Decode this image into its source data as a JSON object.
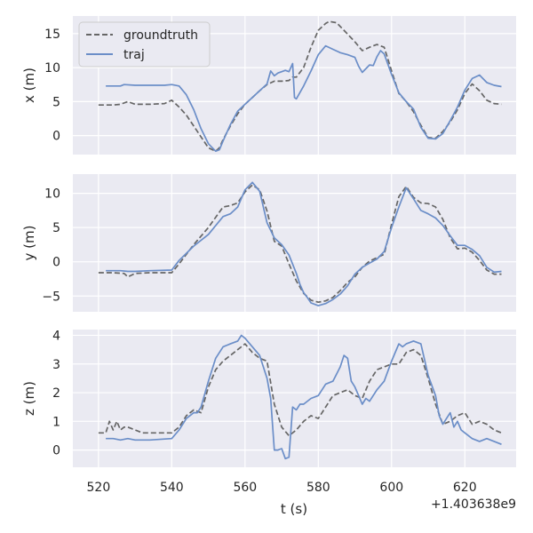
{
  "chart_data": {
    "type": "line",
    "xlabel": "t (s)",
    "xlim": [
      513,
      634
    ],
    "xticks": [
      520,
      540,
      560,
      580,
      600,
      620
    ],
    "xtick_labels": [
      "520",
      "540",
      "560",
      "580",
      "600",
      "620"
    ],
    "offset_text": "+1.403638e9",
    "legend": {
      "placement": "top-left",
      "entries": [
        {
          "name": "groundtruth",
          "style": "dashed",
          "color": "#666666"
        },
        {
          "name": "traj",
          "style": "solid",
          "color": "#6b8ec8"
        }
      ]
    },
    "subplots": [
      {
        "ylabel": "x (m)",
        "ylim": [
          -2.8,
          17.6
        ],
        "yticks": [
          0,
          5,
          10,
          15
        ],
        "ytick_labels": [
          "0",
          "5",
          "10",
          "15"
        ],
        "series": [
          {
            "name": "groundtruth",
            "x": [
              520,
              524,
              526,
              528,
              530,
              534,
              538,
              540,
              542,
              544,
              546,
              548,
              550,
              552,
              553,
              554,
              556,
              558,
              560,
              562,
              564,
              566,
              568,
              570,
              572,
              573,
              574,
              576,
              578,
              580,
              582,
              583,
              585,
              587,
              590,
              592,
              594,
              596,
              598,
              600,
              602,
              604,
              606,
              608,
              610,
              612,
              614,
              616,
              618,
              620,
              622,
              624,
              626,
              628,
              630
            ],
            "y": [
              4.5,
              4.5,
              4.6,
              5,
              4.6,
              4.6,
              4.7,
              5.2,
              4.2,
              3,
              1.4,
              -0.2,
              -1.8,
              -2.3,
              -1.8,
              -0.6,
              1.4,
              3.2,
              4.6,
              5.6,
              6.6,
              7.5,
              8,
              8,
              8.1,
              8.6,
              8.6,
              10,
              13,
              15.5,
              16.5,
              16.8,
              16.6,
              15.5,
              13.8,
              12.5,
              13,
              13.4,
              13,
              9.5,
              6.2,
              5,
              3.5,
              1.5,
              -0.3,
              -0.4,
              0.6,
              2,
              3.8,
              6.2,
              7.6,
              6.6,
              5.2,
              4.7,
              4.6
            ]
          },
          {
            "name": "traj",
            "x": [
              522,
              526,
              527,
              530,
              534,
              538,
              540,
              542,
              544,
              546,
              548,
              550,
              552,
              553,
              554,
              556,
              558,
              560,
              562,
              564,
              566,
              567,
              568,
              569,
              570,
              571,
              572,
              573,
              573.5,
              574,
              576,
              578,
              580,
              582,
              584,
              586,
              588,
              590,
              591,
              592,
              594,
              595,
              596,
              597,
              598,
              600,
              602,
              604,
              606,
              608,
              610,
              612,
              614,
              616,
              618,
              620,
              622,
              624,
              626,
              628,
              630
            ],
            "y": [
              7.3,
              7.3,
              7.5,
              7.4,
              7.4,
              7.4,
              7.5,
              7.3,
              6,
              3.8,
              1,
              -1.2,
              -2.3,
              -2.1,
              -0.8,
              1.6,
              3.6,
              4.6,
              5.6,
              6.6,
              7.6,
              9.5,
              8.8,
              9.2,
              9.4,
              9.6,
              9.4,
              10.6,
              5.6,
              5.4,
              7.3,
              9.5,
              11.9,
              13.2,
              12.7,
              12.2,
              11.9,
              11.5,
              10.2,
              9.3,
              10.4,
              10.3,
              11.6,
              12.5,
              12,
              9,
              6.3,
              5,
              3.9,
              1.2,
              -0.4,
              -0.5,
              0.3,
              2.2,
              4.2,
              6.7,
              8.4,
              8.9,
              7.8,
              7.4,
              7.2
            ]
          }
        ]
      },
      {
        "ylabel": "y (m)",
        "ylim": [
          -7.3,
          12.8
        ],
        "yticks": [
          -5,
          0,
          5,
          10
        ],
        "ytick_labels": [
          "−5",
          "0",
          "5",
          "10"
        ],
        "series": [
          {
            "name": "groundtruth",
            "x": [
              520,
              524,
              527,
              528,
              530,
              534,
              540,
              542,
              546,
              550,
              554,
              556,
              558,
              560,
              562,
              564,
              566,
              568,
              570,
              572,
              574,
              576,
              578,
              580,
              582,
              584,
              586,
              588,
              590,
              592,
              594,
              596,
              598,
              600,
              602,
              604,
              606,
              608,
              610,
              612,
              614,
              616,
              618,
              620,
              622,
              624,
              626,
              628,
              630
            ],
            "y": [
              -1.6,
              -1.6,
              -1.7,
              -2.2,
              -1.7,
              -1.6,
              -1.6,
              -0.3,
              2.5,
              5,
              8,
              8.2,
              8.6,
              10.2,
              11.2,
              10.5,
              7.4,
              3,
              2.3,
              -0.3,
              -2.8,
              -4.6,
              -5.6,
              -5.9,
              -5.7,
              -5.2,
              -4.2,
              -3,
              -2.2,
              -0.8,
              0.1,
              0.6,
              1.1,
              5.5,
              9.5,
              11,
              9.4,
              8.6,
              8.5,
              8,
              6.2,
              3.5,
              1.9,
              2,
              1.4,
              0.2,
              -1.2,
              -1.8,
              -1.8
            ]
          },
          {
            "name": "traj",
            "x": [
              522,
              526,
              528,
              530,
              534,
              540,
              542,
              546,
              550,
              554,
              556,
              558,
              560,
              562,
              564,
              566,
              568,
              570,
              572,
              574,
              575,
              576,
              577,
              578,
              580,
              582,
              584,
              586,
              588,
              590,
              592,
              594,
              596,
              598,
              600,
              602,
              604,
              606,
              608,
              610,
              612,
              614,
              616,
              618,
              620,
              622,
              624,
              626,
              628,
              630
            ],
            "y": [
              -1.3,
              -1.3,
              -1.4,
              -1.4,
              -1.3,
              -1.2,
              0.2,
              2.3,
              4,
              6.6,
              7,
              8,
              10.5,
              11.6,
              10.3,
              5.7,
              3.5,
              2.5,
              1,
              -1.7,
              -3.3,
              -4.5,
              -5.2,
              -6,
              -6.4,
              -6.1,
              -5.5,
              -4.7,
              -3.5,
              -1.8,
              -0.8,
              -0.2,
              0.4,
              1.5,
              5,
              8,
              10.8,
              9.2,
              7.5,
              7,
              6.4,
              5.3,
              3.8,
              2.4,
              2.4,
              1.8,
              0.9,
              -0.8,
              -1.5,
              -1.4
            ]
          }
        ]
      },
      {
        "ylabel": "z (m)",
        "ylim": [
          -0.6,
          4.2
        ],
        "yticks": [
          0,
          1,
          2,
          3,
          4
        ],
        "ytick_labels": [
          "0",
          "1",
          "2",
          "3",
          "4"
        ],
        "series": [
          {
            "name": "groundtruth",
            "x": [
              520,
              522,
              523,
              524,
              525,
              526,
              527,
              528,
              530,
              532,
              534,
              538,
              540,
              542,
              544,
              546,
              548,
              550,
              552,
              554,
              556,
              558,
              560,
              562,
              564,
              566,
              568,
              570,
              572,
              574,
              576,
              578,
              580,
              582,
              584,
              586,
              588,
              590,
              592,
              594,
              596,
              598,
              600,
              602,
              604,
              606,
              608,
              610,
              612,
              614,
              616,
              618,
              620,
              622,
              624,
              626,
              628,
              630
            ],
            "y": [
              0.6,
              0.6,
              1,
              0.7,
              1,
              0.7,
              0.8,
              0.8,
              0.7,
              0.6,
              0.6,
              0.6,
              0.6,
              0.8,
              1.2,
              1.4,
              1.3,
              2.2,
              2.8,
              3.1,
              3.3,
              3.5,
              3.7,
              3.4,
              3.2,
              3.1,
              1.6,
              0.8,
              0.5,
              0.7,
              1,
              1.2,
              1.1,
              1.5,
              1.9,
              2,
              2.1,
              1.9,
              1.8,
              2.4,
              2.8,
              2.9,
              3,
              3,
              3.4,
              3.5,
              3.3,
              2.5,
              1.6,
              0.9,
              1,
              1.2,
              1.3,
              0.9,
              1,
              0.9,
              0.7,
              0.6
            ]
          },
          {
            "name": "traj",
            "x": [
              522,
              524,
              526,
              528,
              530,
              534,
              540,
              542,
              544,
              546,
              547,
              548,
              550,
              552,
              554,
              556,
              558,
              559,
              560,
              562,
              564,
              566,
              567,
              568,
              569,
              570,
              571,
              572,
              573,
              574,
              575,
              576,
              578,
              580,
              582,
              584,
              586,
              587,
              588,
              589,
              590,
              591,
              592,
              593,
              594,
              596,
              598,
              600,
              602,
              603,
              604,
              606,
              608,
              610,
              612,
              613,
              614,
              616,
              617,
              618,
              619,
              620,
              622,
              624,
              626,
              628,
              630
            ],
            "y": [
              0.4,
              0.4,
              0.35,
              0.4,
              0.35,
              0.35,
              0.4,
              0.7,
              1.1,
              1.3,
              1.3,
              1.5,
              2.4,
              3.2,
              3.6,
              3.7,
              3.8,
              4,
              3.9,
              3.6,
              3.3,
              2.5,
              1.8,
              0,
              0,
              0.05,
              -0.3,
              -0.25,
              1.5,
              1.4,
              1.6,
              1.6,
              1.8,
              1.9,
              2.3,
              2.4,
              2.9,
              3.3,
              3.2,
              2.4,
              2.2,
              1.9,
              1.6,
              1.8,
              1.7,
              2.1,
              2.4,
              3.1,
              3.7,
              3.6,
              3.7,
              3.8,
              3.7,
              2.6,
              1.9,
              1.2,
              0.9,
              1.3,
              0.8,
              1,
              0.7,
              0.6,
              0.4,
              0.3,
              0.4,
              0.3,
              0.2
            ]
          }
        ]
      }
    ]
  }
}
